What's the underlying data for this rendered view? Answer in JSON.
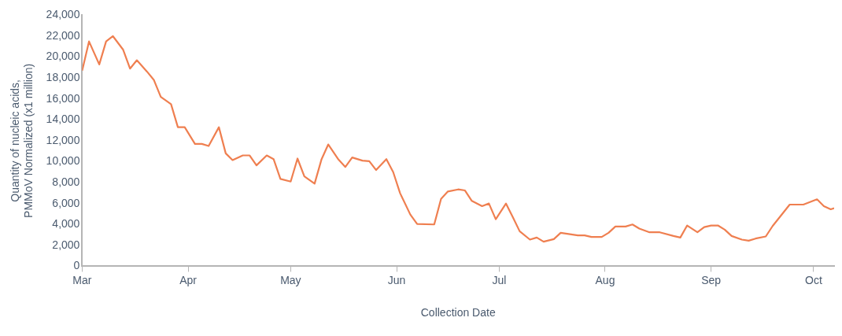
{
  "chart_data": {
    "type": "line",
    "xlabel": "Collection Date",
    "ylabel": "Quantity of nucleic acids,\nPMMoV Normalized (x1 million)",
    "x": [
      "--03-01",
      "--03-03",
      "--03-06",
      "--03-08",
      "--03-10",
      "--03-13",
      "--03-15",
      "--03-17",
      "--03-20",
      "--03-22",
      "--03-24",
      "--03-27",
      "--03-29",
      "--03-31",
      "--04-03",
      "--04-05",
      "--04-07",
      "--04-10",
      "--04-12",
      "--04-14",
      "--04-17",
      "--04-19",
      "--04-21",
      "--04-24",
      "--04-26",
      "--04-28",
      "--05-01",
      "--05-03",
      "--05-05",
      "--05-08",
      "--05-10",
      "--05-12",
      "--05-15",
      "--05-17",
      "--05-19",
      "--05-22",
      "--05-24",
      "--05-26",
      "--05-29",
      "--05-31",
      "--06-02",
      "--06-05",
      "--06-07",
      "--06-12",
      "--06-14",
      "--06-16",
      "--06-19",
      "--06-21",
      "--06-23",
      "--06-26",
      "--06-28",
      "--06-30",
      "--07-03",
      "--07-05",
      "--07-07",
      "--07-10",
      "--07-12",
      "--07-14",
      "--07-17",
      "--07-19",
      "--07-24",
      "--07-26",
      "--07-28",
      "--07-31",
      "--08-02",
      "--08-04",
      "--08-07",
      "--08-09",
      "--08-11",
      "--08-14",
      "--08-17",
      "--08-21",
      "--08-23",
      "--08-25",
      "--08-28",
      "--08-30",
      "--09-01",
      "--09-03",
      "--09-05",
      "--09-07",
      "--09-10",
      "--09-12",
      "--09-14",
      "--09-17",
      "--09-19",
      "--09-24",
      "--09-28",
      "--10-02",
      "--10-04",
      "--10-06",
      "--10-07"
    ],
    "series": [
      {
        "color": "#ef7f50",
        "values": [
          18700,
          21500,
          19300,
          21500,
          22000,
          20700,
          18900,
          19700,
          18600,
          17800,
          16200,
          15500,
          13300,
          13300,
          11700,
          11700,
          11500,
          13300,
          10800,
          10150,
          10600,
          10600,
          9650,
          10600,
          10250,
          8350,
          8100,
          10300,
          8600,
          7900,
          10200,
          11650,
          10200,
          9500,
          10400,
          10100,
          10050,
          9200,
          10250,
          9000,
          7000,
          4950,
          4050,
          4000,
          6450,
          7150,
          7350,
          7250,
          6250,
          5750,
          6000,
          4500,
          6000,
          4700,
          3350,
          2550,
          2750,
          2350,
          2600,
          3200,
          2950,
          2950,
          2800,
          2800,
          3200,
          3800,
          3800,
          4000,
          3600,
          3250,
          3250,
          2900,
          2750,
          3900,
          3250,
          3750,
          3900,
          3900,
          3500,
          2900,
          2550,
          2450,
          2650,
          2850,
          3850,
          5900,
          5900,
          6400,
          5750,
          5450,
          5550
        ]
      }
    ],
    "xlim": [
      "--03-01",
      "--10-07"
    ],
    "xticks": [
      {
        "value": "--03-01",
        "label": "Mar"
      },
      {
        "value": "--04-01",
        "label": "Apr"
      },
      {
        "value": "--05-01",
        "label": "May"
      },
      {
        "value": "--06-01",
        "label": "Jun"
      },
      {
        "value": "--07-01",
        "label": "Jul"
      },
      {
        "value": "--08-01",
        "label": "Aug"
      },
      {
        "value": "--09-01",
        "label": "Sep"
      },
      {
        "value": "--10-01",
        "label": "Oct"
      }
    ],
    "ylim": [
      0,
      24000
    ],
    "yticks": [
      0,
      {
        "value": 2000,
        "label": "2,000"
      },
      {
        "value": 4000,
        "label": "4,000"
      },
      {
        "value": 6000,
        "label": "6,000"
      },
      {
        "value": 8000,
        "label": "8,000"
      },
      {
        "value": 10000,
        "label": "10,000"
      },
      {
        "value": 12000,
        "label": "12,000"
      },
      {
        "value": 14000,
        "label": "14,000"
      },
      {
        "value": 16000,
        "label": "16,000"
      },
      {
        "value": 18000,
        "label": "18,000"
      },
      {
        "value": 20000,
        "label": "20,000"
      },
      {
        "value": 22000,
        "label": "22,000"
      },
      {
        "value": 24000,
        "label": "24,000"
      }
    ],
    "grid": false,
    "legend": false,
    "marker": "none",
    "line_style": "solid"
  }
}
